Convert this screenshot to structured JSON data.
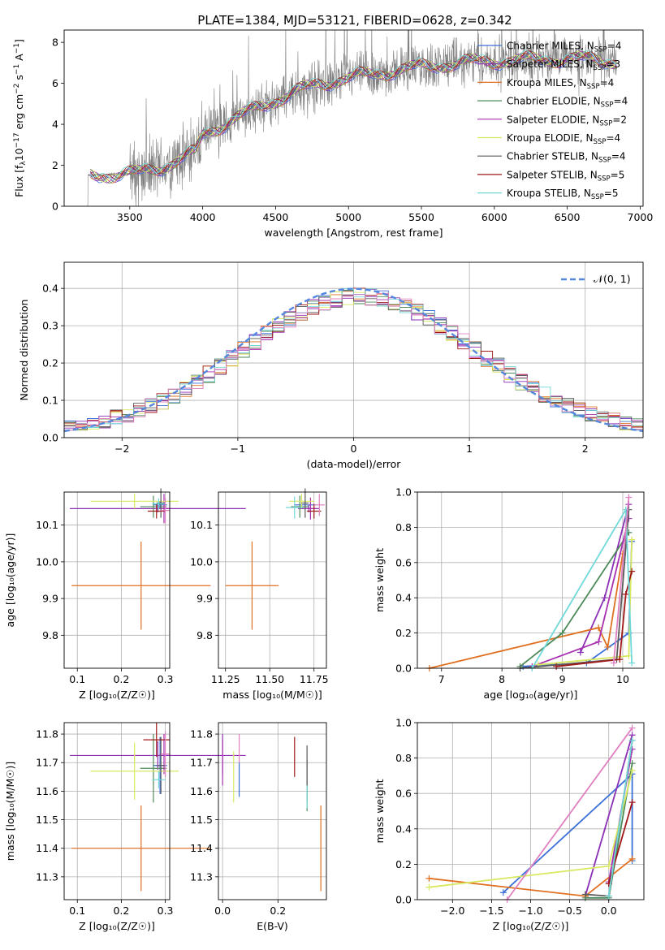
{
  "figure_title": "PLATE=1384, MJD=53121, FIBERID=0628, z=0.342",
  "colors": {
    "c0": "#3a6fd8",
    "c1": "#8b2fb5",
    "c2": "#e07020",
    "c3": "#4e8a5a",
    "c4": "#a830b0",
    "c5": "#d8e860",
    "c6": "#5a5a5a",
    "c7": "#a01818",
    "c8": "#70d8d8",
    "c9": "#e080c0",
    "gaussian": "#5588dd",
    "spectrum": "#808080"
  },
  "legend_models": [
    {
      "label": "Chabrier MILES, N",
      "sub": "SSP",
      "suffix": "=4",
      "color": "#3a6fd8"
    },
    {
      "label": "Salpeter MILES, N",
      "sub": "SSP",
      "suffix": "=3",
      "color": "#8b2fb5"
    },
    {
      "label": "Kroupa MILES, N",
      "sub": "SSP",
      "suffix": "=4",
      "color": "#e07020"
    },
    {
      "label": "Chabrier ELODIE, N",
      "sub": "SSP",
      "suffix": "=4",
      "color": "#4e8a5a"
    },
    {
      "label": "Salpeter ELODIE, N",
      "sub": "SSP",
      "suffix": "=2",
      "color": "#a830b0"
    },
    {
      "label": "Kroupa ELODIE, N",
      "sub": "SSP",
      "suffix": "=4",
      "color": "#d8e860"
    },
    {
      "label": "Chabrier STELIB, N",
      "sub": "SSP",
      "suffix": "=4",
      "color": "#5a5a5a"
    },
    {
      "label": "Salpeter STELIB, N",
      "sub": "SSP",
      "suffix": "=5",
      "color": "#a01818"
    },
    {
      "label": "Kroupa STELIB, N",
      "sub": "SSP",
      "suffix": "=5",
      "color": "#70d8d8"
    }
  ],
  "chart_data": [
    {
      "id": "spectrum",
      "type": "line",
      "xlabel": "wavelength [Angstrom, rest frame]",
      "ylabel_main": "Flux [f",
      "ylabel_sub": "λ",
      "ylabel_rest": "10",
      "ylabel_sup1": "−17",
      "ylabel_rest2": " erg cm",
      "ylabel_sup2": "−2",
      "ylabel_rest3": " s",
      "ylabel_sup3": "−1",
      "ylabel_rest4": " A",
      "ylabel_sup4": "−1",
      "ylabel_end": "]",
      "xlim": [
        3050,
        7020
      ],
      "ylim": [
        0,
        8.6
      ],
      "xticks": [
        "3500",
        "4000",
        "4500",
        "5000",
        "5500",
        "6000",
        "6500",
        "7000"
      ],
      "xtick_values": [
        3500,
        4000,
        4500,
        5000,
        5500,
        6000,
        6500,
        7000
      ],
      "yticks": [
        "0",
        "2",
        "4",
        "6",
        "8"
      ],
      "ytick_values": [
        0,
        2,
        4,
        6,
        8
      ],
      "x_range": [
        3210,
        6840
      ],
      "continuum": [
        [
          3210,
          1.5
        ],
        [
          3550,
          1.6
        ],
        [
          3750,
          2.0
        ],
        [
          3950,
          2.6
        ],
        [
          4000,
          3.5
        ],
        [
          4200,
          4.2
        ],
        [
          4500,
          5.2
        ],
        [
          4800,
          6.0
        ],
        [
          5200,
          6.5
        ],
        [
          5600,
          6.9
        ],
        [
          6000,
          7.1
        ],
        [
          6500,
          7.2
        ],
        [
          6840,
          7.1
        ]
      ]
    },
    {
      "id": "residuals",
      "type": "step",
      "xlabel": "(data-model)/error",
      "ylabel": "Normed distribution",
      "xlim": [
        -2.5,
        2.5
      ],
      "ylim": [
        0,
        0.47
      ],
      "xticks": [
        "−2",
        "−1",
        "0",
        "1",
        "2"
      ],
      "xtick_values": [
        -2,
        -1,
        0,
        1,
        2
      ],
      "yticks": [
        "0.0",
        "0.1",
        "0.2",
        "0.3",
        "0.4"
      ],
      "ytick_values": [
        0,
        0.1,
        0.2,
        0.3,
        0.4
      ],
      "bin_width": 0.1,
      "legend_label": "𝒩(0, 1)",
      "series_colors": [
        "#3a6fd8",
        "#8b2fb5",
        "#e07020",
        "#4e8a5a",
        "#a830b0",
        "#d8e860",
        "#5a5a5a",
        "#a01818",
        "#70d8d8",
        "#e080c0"
      ]
    },
    {
      "id": "age_vs_Z",
      "type": "errorbar",
      "xlabel": "Z [log₁₀(Z/Z☉)]",
      "ylabel": "age  [log₁₀(age/yr)]",
      "xlim": [
        0.07,
        0.31
      ],
      "ylim": [
        9.71,
        10.19
      ],
      "xticks": [
        "0.1",
        "0.2",
        "0.3"
      ],
      "xtick_values": [
        0.1,
        0.2,
        0.3
      ],
      "yticks": [
        "9.8",
        "9.9",
        "10.0",
        "10.1"
      ],
      "ytick_values": [
        9.8,
        9.9,
        10.0,
        10.1
      ],
      "points": [
        {
          "x": 0.288,
          "y": 10.155,
          "xerr": 0.016,
          "yerr": 0.01,
          "color": "#3a6fd8"
        },
        {
          "x": 0.283,
          "y": 10.145,
          "xerr": 0.2,
          "yerr": 0.01,
          "color": "#8b2fb5"
        },
        {
          "x": 0.245,
          "y": 9.935,
          "xerr": 0.158,
          "yerr": 0.12,
          "color": "#e07020"
        },
        {
          "x": 0.273,
          "y": 10.15,
          "xerr": 0.03,
          "yerr": 0.03,
          "color": "#4e8a5a"
        },
        {
          "x": 0.297,
          "y": 10.145,
          "xerr": 0.01,
          "yerr": 0.04,
          "color": "#a830b0"
        },
        {
          "x": 0.23,
          "y": 10.165,
          "xerr": 0.1,
          "yerr": 0.02,
          "color": "#d8e860"
        },
        {
          "x": 0.29,
          "y": 10.16,
          "xerr": 0.01,
          "yerr": 0.04,
          "color": "#5a5a5a"
        },
        {
          "x": 0.28,
          "y": 10.138,
          "xerr": 0.02,
          "yerr": 0.02,
          "color": "#a01818"
        },
        {
          "x": 0.285,
          "y": 10.158,
          "xerr": 0.015,
          "yerr": 0.015,
          "color": "#70d8d8"
        },
        {
          "x": 0.3,
          "y": 10.14,
          "xerr": 0.01,
          "yerr": 0.035,
          "color": "#e080c0"
        }
      ]
    },
    {
      "id": "age_vs_mass",
      "type": "errorbar",
      "xlabel": "mass [log₁₀(M/M☉)]",
      "ylabel": "",
      "xlim": [
        11.21,
        11.82
      ],
      "ylim": [
        9.71,
        10.19
      ],
      "xticks": [
        "11.25",
        "11.50",
        "11.75"
      ],
      "xtick_values": [
        11.25,
        11.5,
        11.75
      ],
      "yticks": [
        "9.8",
        "9.9",
        "10.0",
        "10.1"
      ],
      "ytick_values": [
        9.8,
        9.9,
        10.0,
        10.1
      ],
      "points": [
        {
          "x": 11.7,
          "y": 10.155,
          "xerr": 0.06,
          "yerr": 0.01,
          "color": "#3a6fd8"
        },
        {
          "x": 11.72,
          "y": 10.145,
          "xerr": 0.06,
          "yerr": 0.01,
          "color": "#8b2fb5"
        },
        {
          "x": 11.4,
          "y": 9.935,
          "xerr": 0.15,
          "yerr": 0.12,
          "color": "#e07020"
        },
        {
          "x": 11.67,
          "y": 10.15,
          "xerr": 0.05,
          "yerr": 0.03,
          "color": "#4e8a5a"
        },
        {
          "x": 11.73,
          "y": 10.145,
          "xerr": 0.03,
          "yerr": 0.03,
          "color": "#a830b0"
        },
        {
          "x": 11.68,
          "y": 10.165,
          "xerr": 0.07,
          "yerr": 0.02,
          "color": "#d8e860"
        },
        {
          "x": 11.7,
          "y": 10.16,
          "xerr": 0.02,
          "yerr": 0.04,
          "color": "#5a5a5a"
        },
        {
          "x": 11.75,
          "y": 10.138,
          "xerr": 0.04,
          "yerr": 0.02,
          "color": "#a01818"
        },
        {
          "x": 11.64,
          "y": 10.148,
          "xerr": 0.05,
          "yerr": 0.03,
          "color": "#70d8d8"
        },
        {
          "x": 11.78,
          "y": 10.155,
          "xerr": 0.03,
          "yerr": 0.03,
          "color": "#e080c0"
        }
      ]
    },
    {
      "id": "weight_vs_age",
      "type": "line",
      "xlabel": "age  [log₁₀(age/yr)]",
      "ylabel": "mass weight",
      "xlim": [
        6.6,
        10.35
      ],
      "ylim": [
        0,
        1.0
      ],
      "xticks": [
        "7",
        "8",
        "9",
        "10"
      ],
      "xtick_values": [
        7,
        8,
        9,
        10
      ],
      "yticks": [
        "0.0",
        "0.2",
        "0.4",
        "0.6",
        "0.8",
        "1.0"
      ],
      "ytick_values": [
        0,
        0.2,
        0.4,
        0.6,
        0.8,
        1.0
      ],
      "series": [
        {
          "color": "#3a6fd8",
          "points": [
            [
              8.35,
              0.01
            ],
            [
              9.4,
              0.03
            ],
            [
              10.1,
              0.2
            ],
            [
              10.15,
              0.72
            ]
          ]
        },
        {
          "color": "#8b2fb5",
          "points": [
            [
              9.3,
              0.09
            ],
            [
              9.7,
              0.4
            ],
            [
              10.1,
              0.93
            ]
          ]
        },
        {
          "color": "#e07020",
          "points": [
            [
              6.8,
              0.0
            ],
            [
              9.6,
              0.23
            ],
            [
              9.75,
              0.12
            ],
            [
              10.0,
              0.65
            ]
          ]
        },
        {
          "color": "#4e8a5a",
          "points": [
            [
              8.3,
              0.01
            ],
            [
              9.0,
              0.2
            ],
            [
              10.1,
              0.77
            ]
          ]
        },
        {
          "color": "#a830b0",
          "points": [
            [
              8.5,
              0.01
            ],
            [
              9.6,
              0.15
            ],
            [
              10.1,
              0.85
            ]
          ]
        },
        {
          "color": "#d8e860",
          "points": [
            [
              8.6,
              0.02
            ],
            [
              10.1,
              0.07
            ],
            [
              10.15,
              0.73
            ]
          ]
        },
        {
          "color": "#5a5a5a",
          "points": [
            [
              8.3,
              0.0
            ],
            [
              9.9,
              0.05
            ],
            [
              10.1,
              0.9
            ]
          ]
        },
        {
          "color": "#a01818",
          "points": [
            [
              8.9,
              0.01
            ],
            [
              9.95,
              0.05
            ],
            [
              10.05,
              0.42
            ],
            [
              10.15,
              0.55
            ]
          ]
        },
        {
          "color": "#70d8d8",
          "points": [
            [
              8.5,
              0.0
            ],
            [
              10.05,
              0.9
            ],
            [
              10.15,
              0.03
            ]
          ]
        },
        {
          "color": "#e080c0",
          "points": [
            [
              9.85,
              0.03
            ],
            [
              10.1,
              0.97
            ]
          ]
        }
      ]
    },
    {
      "id": "mass_vs_Z",
      "type": "errorbar",
      "xlabel": "Z [log₁₀(Z/Z☉)]",
      "ylabel": "mass [log₁₀(M/M☉)]",
      "xlim": [
        0.07,
        0.31
      ],
      "ylim": [
        11.22,
        11.84
      ],
      "xticks": [
        "0.1",
        "0.2",
        "0.3"
      ],
      "xtick_values": [
        0.1,
        0.2,
        0.3
      ],
      "yticks": [
        "11.3",
        "11.4",
        "11.5",
        "11.6",
        "11.7",
        "11.8"
      ],
      "ytick_values": [
        11.3,
        11.4,
        11.5,
        11.6,
        11.7,
        11.8
      ],
      "points": [
        {
          "x": 0.288,
          "y": 11.69,
          "xerr": 0.016,
          "yerr": 0.1,
          "color": "#3a6fd8"
        },
        {
          "x": 0.283,
          "y": 11.725,
          "xerr": 0.2,
          "yerr": 0.05,
          "color": "#8b2fb5"
        },
        {
          "x": 0.245,
          "y": 11.4,
          "xerr": 0.158,
          "yerr": 0.15,
          "color": "#e07020"
        },
        {
          "x": 0.273,
          "y": 11.68,
          "xerr": 0.03,
          "yerr": 0.12,
          "color": "#4e8a5a"
        },
        {
          "x": 0.297,
          "y": 11.73,
          "xerr": 0.01,
          "yerr": 0.07,
          "color": "#a830b0"
        },
        {
          "x": 0.23,
          "y": 11.67,
          "xerr": 0.1,
          "yerr": 0.1,
          "color": "#d8e860"
        },
        {
          "x": 0.29,
          "y": 11.69,
          "xerr": 0.01,
          "yerr": 0.1,
          "color": "#5a5a5a"
        },
        {
          "x": 0.28,
          "y": 11.78,
          "xerr": 0.03,
          "yerr": 0.06,
          "color": "#a01818"
        },
        {
          "x": 0.285,
          "y": 11.64,
          "xerr": 0.015,
          "yerr": 0.03,
          "color": "#70d8d8"
        },
        {
          "x": 0.3,
          "y": 11.73,
          "xerr": 0.01,
          "yerr": 0.08,
          "color": "#e080c0"
        }
      ]
    },
    {
      "id": "mass_vs_ebv",
      "type": "errorbar",
      "xlabel": "E(B-V)",
      "ylabel": "",
      "xlim": [
        -0.015,
        0.375
      ],
      "ylim": [
        11.22,
        11.84
      ],
      "xticks": [
        "0.0",
        "0.2"
      ],
      "xtick_values": [
        0.0,
        0.2
      ],
      "yticks": [
        "11.3",
        "11.4",
        "11.5",
        "11.6",
        "11.7",
        "11.8"
      ],
      "ytick_values": [
        11.3,
        11.4,
        11.5,
        11.6,
        11.7,
        11.8
      ],
      "points": [
        {
          "x": 0.06,
          "y": 11.64,
          "xerr": 0,
          "yerr": 0.06,
          "color": "#3a6fd8"
        },
        {
          "x": 0.0,
          "y": 11.73,
          "xerr": 0,
          "yerr": 0.07,
          "color": "#8b2fb5"
        },
        {
          "x": 0.355,
          "y": 11.4,
          "xerr": 0,
          "yerr": 0.15,
          "color": "#e07020"
        },
        {
          "x": 0.305,
          "y": 11.62,
          "xerr": 0,
          "yerr": 0.09,
          "color": "#4e8a5a"
        },
        {
          "x": 0.0,
          "y": 11.7,
          "xerr": 0,
          "yerr": 0.08,
          "color": "#a830b0"
        },
        {
          "x": 0.04,
          "y": 11.65,
          "xerr": 0,
          "yerr": 0.09,
          "color": "#d8e860"
        },
        {
          "x": 0.305,
          "y": 11.66,
          "xerr": 0,
          "yerr": 0.1,
          "color": "#5a5a5a"
        },
        {
          "x": 0.26,
          "y": 11.72,
          "xerr": 0,
          "yerr": 0.07,
          "color": "#a01818"
        },
        {
          "x": 0.305,
          "y": 11.58,
          "xerr": 0,
          "yerr": 0.04,
          "color": "#70d8d8"
        },
        {
          "x": 0.06,
          "y": 11.75,
          "xerr": 0,
          "yerr": 0.05,
          "color": "#e080c0"
        }
      ]
    },
    {
      "id": "weight_vs_Z",
      "type": "line",
      "xlabel": "Z [log₁₀(Z/Z☉)]",
      "ylabel": "mass weight",
      "xlim": [
        -2.45,
        0.45
      ],
      "ylim": [
        0,
        1.0
      ],
      "xticks": [
        "−2.0",
        "−1.5",
        "−1.0",
        "−0.5",
        "0.0"
      ],
      "xtick_values": [
        -2.0,
        -1.5,
        -1.0,
        -0.5,
        0.0
      ],
      "yticks": [
        "0.0",
        "0.2",
        "0.4",
        "0.6",
        "0.8",
        "1.0"
      ],
      "ytick_values": [
        0,
        0.2,
        0.4,
        0.6,
        0.8,
        1.0
      ],
      "series": [
        {
          "color": "#3a6fd8",
          "points": [
            [
              -1.35,
              0.04
            ],
            [
              0.3,
              0.71
            ],
            [
              0.3,
              0.22
            ]
          ]
        },
        {
          "color": "#8b2fb5",
          "points": [
            [
              -0.3,
              0.02
            ],
            [
              0.3,
              0.93
            ]
          ]
        },
        {
          "color": "#e07020",
          "points": [
            [
              -2.3,
              0.12
            ],
            [
              -0.3,
              0.02
            ],
            [
              0.3,
              0.23
            ]
          ]
        },
        {
          "color": "#4e8a5a",
          "points": [
            [
              -0.3,
              0.01
            ],
            [
              0.0,
              0.01
            ],
            [
              0.3,
              0.77
            ]
          ]
        },
        {
          "color": "#a830b0",
          "points": [
            [
              0.0,
              0.1
            ],
            [
              0.3,
              0.85
            ]
          ]
        },
        {
          "color": "#d8e860",
          "points": [
            [
              -2.3,
              0.07
            ],
            [
              0.0,
              0.19
            ],
            [
              0.3,
              0.73
            ]
          ]
        },
        {
          "color": "#5a5a5a",
          "points": [
            [
              -0.3,
              0.03
            ],
            [
              0.0,
              0.02
            ],
            [
              0.3,
              0.9
            ]
          ]
        },
        {
          "color": "#a01818",
          "points": [
            [
              0.0,
              0.09
            ],
            [
              0.3,
              0.55
            ]
          ]
        },
        {
          "color": "#70d8d8",
          "points": [
            [
              0.0,
              0.02
            ],
            [
              0.3,
              0.9
            ]
          ]
        },
        {
          "color": "#e080c0",
          "points": [
            [
              -1.3,
              0.0
            ],
            [
              0.3,
              0.97
            ]
          ]
        }
      ]
    }
  ]
}
